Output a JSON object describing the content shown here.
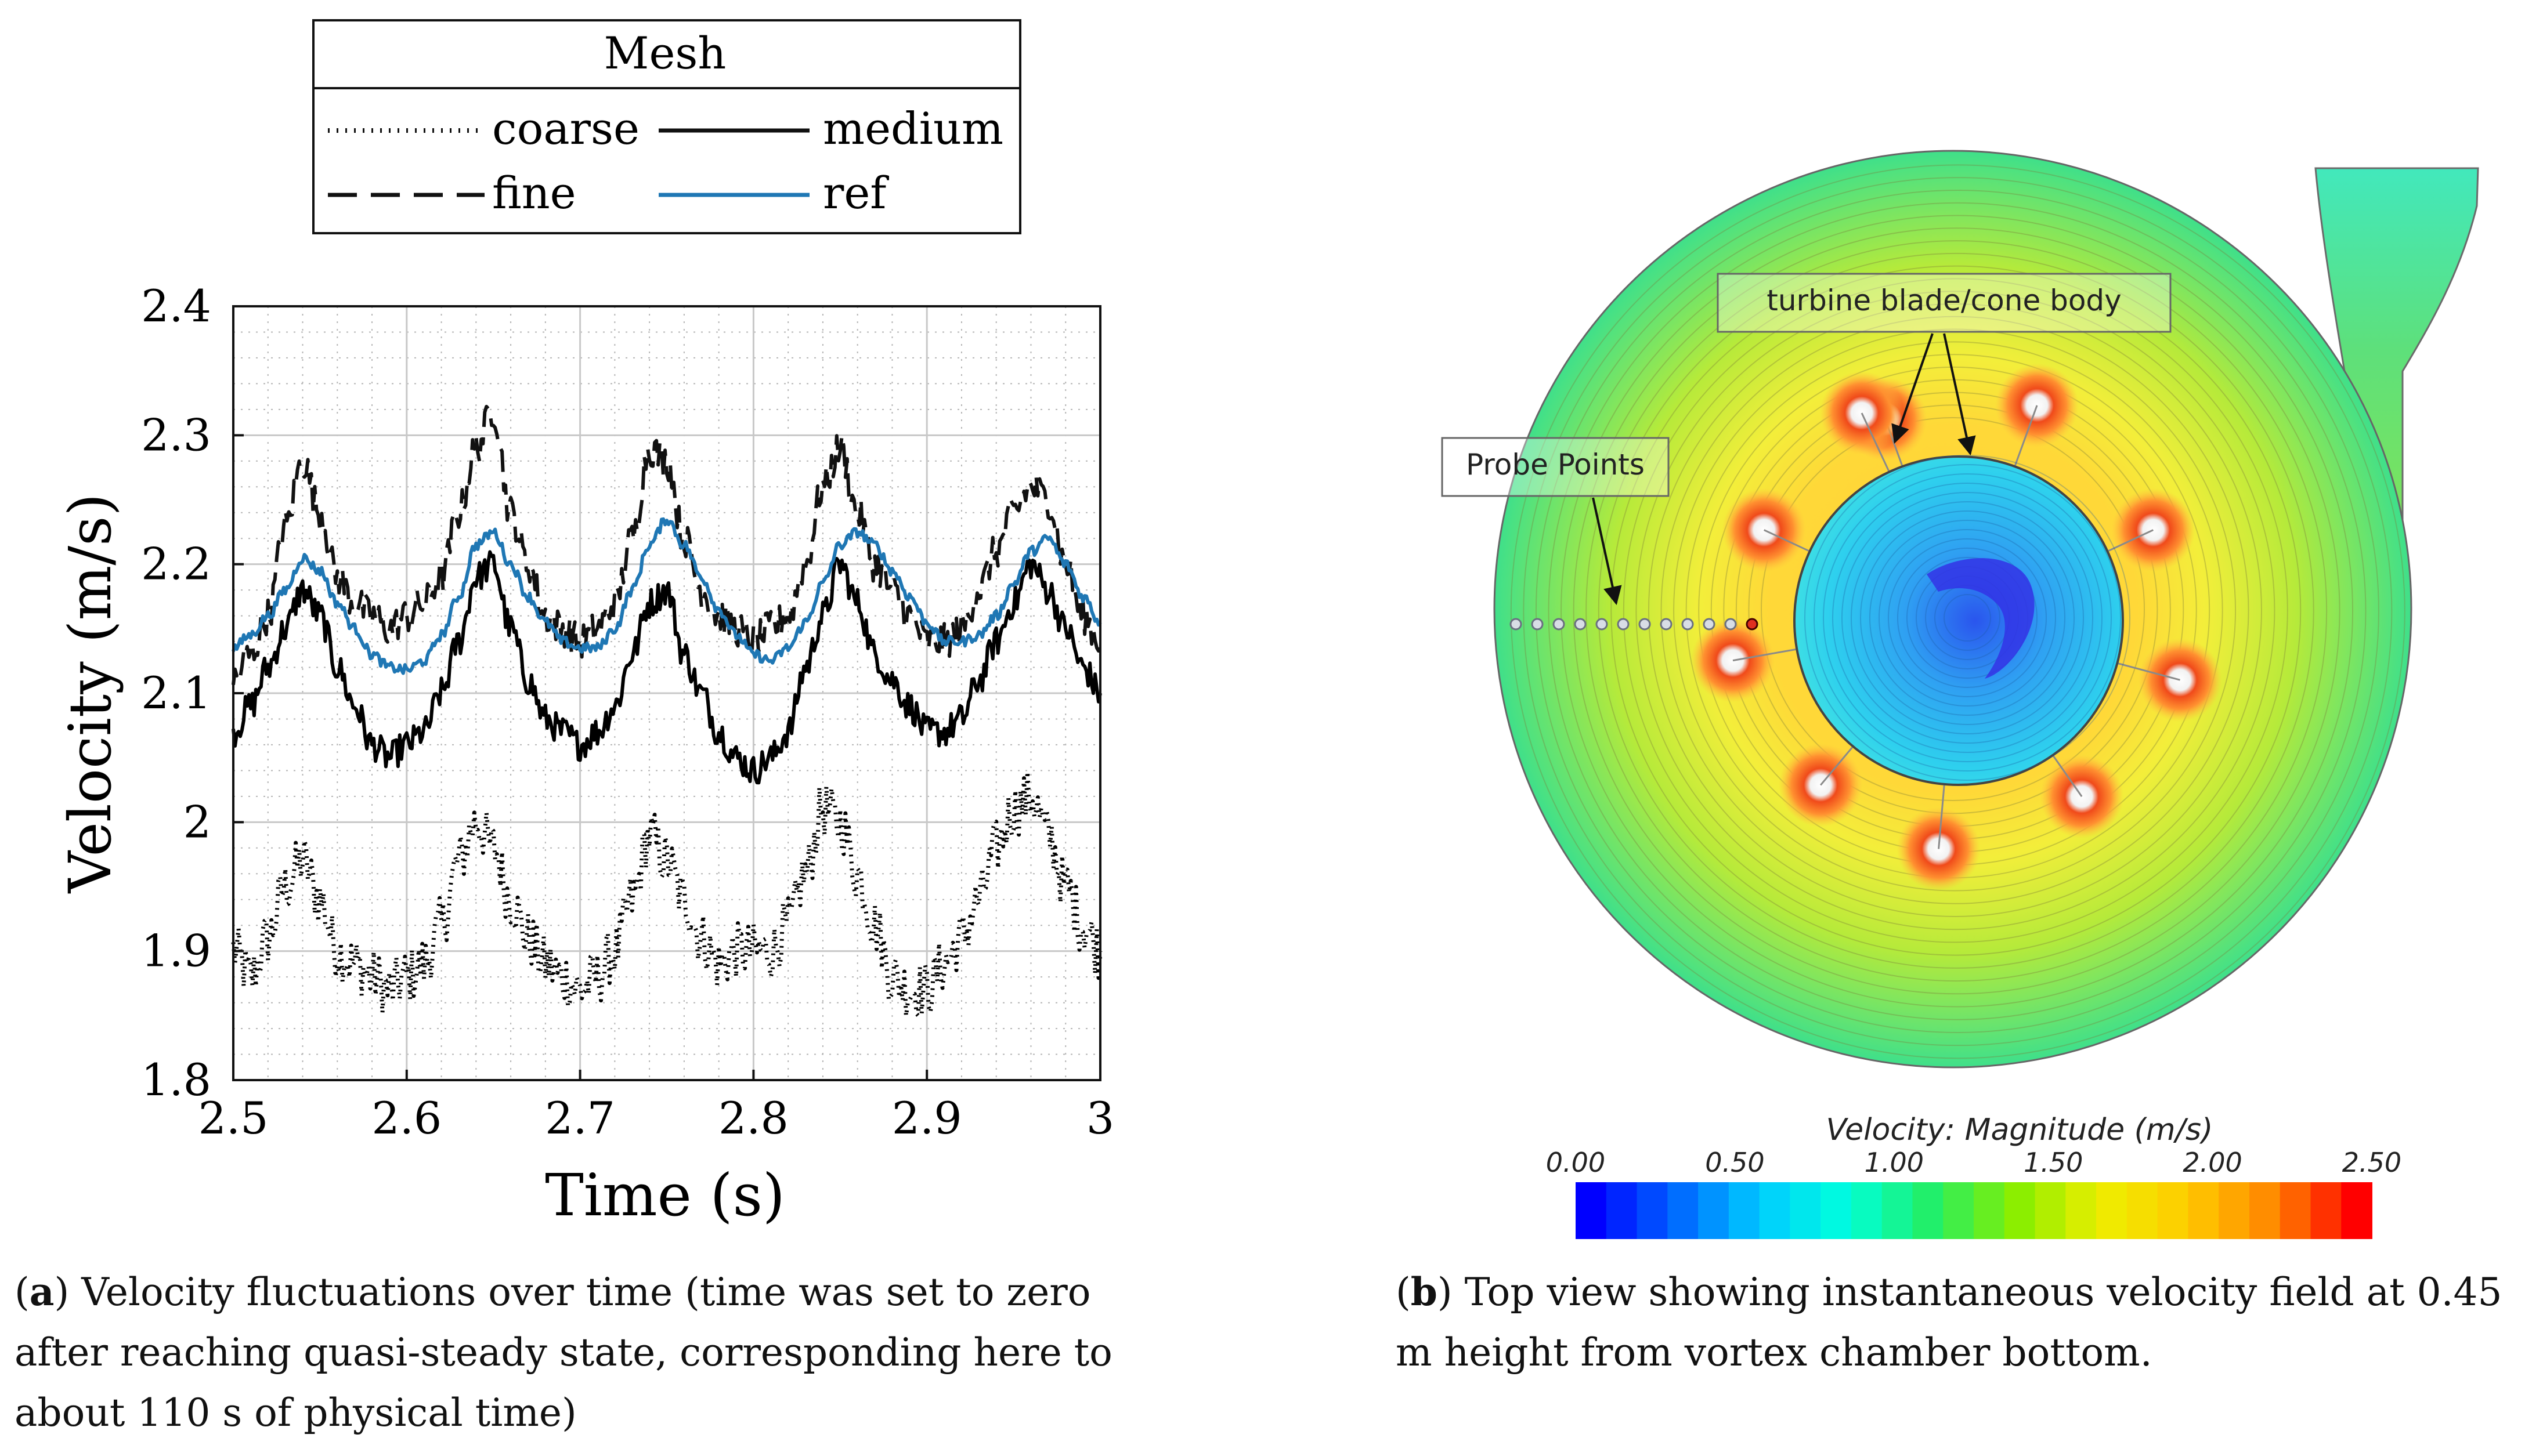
{
  "chart_data": [
    {
      "type": "line",
      "panel_label": "a",
      "xlabel": "Time (s)",
      "ylabel": "Velocity (m/s)",
      "xlim": [
        2.5,
        3.0
      ],
      "ylim": [
        1.8,
        2.4
      ],
      "xticks": [
        "2.5",
        "2.6",
        "2.7",
        "2.8",
        "2.9",
        "3"
      ],
      "yticks": [
        "1.8",
        "1.9",
        "2",
        "2.1",
        "2.2",
        "2.3",
        "2.4"
      ],
      "grid": true,
      "legend": {
        "title": "Mesh",
        "position": "top, above plot",
        "entries": [
          {
            "label": "coarse",
            "style": "dotted"
          },
          {
            "label": "medium",
            "style": "solid"
          },
          {
            "label": "fine",
            "style": "dashed"
          },
          {
            "label": "ref",
            "style": "solid-blue"
          }
        ]
      },
      "series": [
        {
          "name": "ref",
          "color": "#1f77b4",
          "x": [
            2.5,
            2.51,
            2.52,
            2.53,
            2.54,
            2.55,
            2.56,
            2.57,
            2.58,
            2.59,
            2.6,
            2.61,
            2.62,
            2.63,
            2.64,
            2.65,
            2.66,
            2.67,
            2.68,
            2.69,
            2.7,
            2.71,
            2.72,
            2.73,
            2.74,
            2.75,
            2.76,
            2.77,
            2.78,
            2.79,
            2.8,
            2.81,
            2.82,
            2.83,
            2.84,
            2.85,
            2.86,
            2.87,
            2.88,
            2.89,
            2.9,
            2.91,
            2.92,
            2.93,
            2.94,
            2.95,
            2.96,
            2.97,
            2.98,
            2.99,
            3.0
          ],
          "values": [
            2.135,
            2.145,
            2.16,
            2.18,
            2.205,
            2.195,
            2.17,
            2.15,
            2.13,
            2.12,
            2.118,
            2.125,
            2.145,
            2.175,
            2.215,
            2.225,
            2.2,
            2.175,
            2.155,
            2.14,
            2.135,
            2.135,
            2.15,
            2.18,
            2.215,
            2.235,
            2.215,
            2.19,
            2.165,
            2.145,
            2.13,
            2.125,
            2.135,
            2.155,
            2.185,
            2.215,
            2.225,
            2.215,
            2.195,
            2.175,
            2.155,
            2.14,
            2.14,
            2.145,
            2.16,
            2.185,
            2.21,
            2.22,
            2.2,
            2.175,
            2.155
          ]
        },
        {
          "name": "fine",
          "color": "#111111",
          "x": [
            2.5,
            2.51,
            2.52,
            2.53,
            2.54,
            2.55,
            2.56,
            2.57,
            2.58,
            2.59,
            2.6,
            2.61,
            2.62,
            2.63,
            2.64,
            2.65,
            2.66,
            2.67,
            2.68,
            2.69,
            2.7,
            2.71,
            2.72,
            2.73,
            2.74,
            2.75,
            2.76,
            2.77,
            2.78,
            2.79,
            2.8,
            2.81,
            2.82,
            2.83,
            2.84,
            2.85,
            2.86,
            2.87,
            2.88,
            2.89,
            2.9,
            2.91,
            2.92,
            2.93,
            2.94,
            2.95,
            2.96,
            2.97,
            2.98,
            2.99,
            3.0
          ],
          "values": [
            2.11,
            2.13,
            2.16,
            2.23,
            2.28,
            2.24,
            2.19,
            2.17,
            2.16,
            2.15,
            2.16,
            2.17,
            2.19,
            2.24,
            2.29,
            2.32,
            2.24,
            2.2,
            2.16,
            2.15,
            2.14,
            2.15,
            2.17,
            2.22,
            2.29,
            2.28,
            2.22,
            2.18,
            2.16,
            2.15,
            2.14,
            2.15,
            2.16,
            2.2,
            2.26,
            2.29,
            2.24,
            2.2,
            2.18,
            2.16,
            2.14,
            2.14,
            2.15,
            2.18,
            2.21,
            2.24,
            2.26,
            2.25,
            2.2,
            2.16,
            2.14
          ]
        },
        {
          "name": "medium",
          "color": "#000000",
          "x": [
            2.5,
            2.51,
            2.52,
            2.53,
            2.54,
            2.55,
            2.56,
            2.57,
            2.58,
            2.59,
            2.6,
            2.61,
            2.62,
            2.63,
            2.64,
            2.65,
            2.66,
            2.67,
            2.68,
            2.69,
            2.7,
            2.71,
            2.72,
            2.73,
            2.74,
            2.75,
            2.76,
            2.77,
            2.78,
            2.79,
            2.8,
            2.81,
            2.82,
            2.83,
            2.84,
            2.85,
            2.86,
            2.87,
            2.88,
            2.89,
            2.9,
            2.91,
            2.92,
            2.93,
            2.94,
            2.95,
            2.96,
            2.97,
            2.98,
            2.99,
            3.0
          ],
          "values": [
            2.07,
            2.09,
            2.12,
            2.15,
            2.18,
            2.16,
            2.12,
            2.09,
            2.06,
            2.05,
            2.06,
            2.07,
            2.1,
            2.14,
            2.19,
            2.2,
            2.15,
            2.11,
            2.08,
            2.07,
            2.06,
            2.07,
            2.09,
            2.13,
            2.17,
            2.18,
            2.13,
            2.1,
            2.07,
            2.05,
            2.04,
            2.05,
            2.07,
            2.12,
            2.16,
            2.2,
            2.17,
            2.13,
            2.11,
            2.09,
            2.07,
            2.07,
            2.08,
            2.11,
            2.14,
            2.17,
            2.2,
            2.18,
            2.15,
            2.12,
            2.1
          ]
        },
        {
          "name": "coarse",
          "color": "#000000",
          "x": [
            2.5,
            2.51,
            2.52,
            2.53,
            2.54,
            2.55,
            2.56,
            2.57,
            2.58,
            2.59,
            2.6,
            2.61,
            2.62,
            2.63,
            2.64,
            2.65,
            2.66,
            2.67,
            2.68,
            2.69,
            2.7,
            2.71,
            2.72,
            2.73,
            2.74,
            2.75,
            2.76,
            2.77,
            2.78,
            2.79,
            2.8,
            2.81,
            2.82,
            2.83,
            2.84,
            2.85,
            2.86,
            2.87,
            2.88,
            2.89,
            2.9,
            2.91,
            2.92,
            2.93,
            2.94,
            2.95,
            2.96,
            2.97,
            2.98,
            2.99,
            3.0
          ],
          "values": [
            1.9,
            1.88,
            1.91,
            1.95,
            1.97,
            1.94,
            1.9,
            1.89,
            1.88,
            1.87,
            1.88,
            1.89,
            1.92,
            1.97,
            2.0,
            1.98,
            1.94,
            1.91,
            1.89,
            1.88,
            1.87,
            1.88,
            1.9,
            1.94,
            1.99,
            1.97,
            1.94,
            1.91,
            1.89,
            1.9,
            1.9,
            1.9,
            1.92,
            1.96,
            2.01,
            2.0,
            1.96,
            1.92,
            1.88,
            1.87,
            1.87,
            1.89,
            1.91,
            1.94,
            1.98,
            2.01,
            2.02,
            1.99,
            1.95,
            1.92,
            1.9
          ]
        }
      ]
    },
    {
      "type": "heatmap",
      "panel_label": "b",
      "title": "Velocity: Magnitude (m/s)",
      "colorbar": {
        "range": [
          0.0,
          2.5
        ],
        "ticks": [
          "0.00",
          "0.50",
          "1.00",
          "1.50",
          "2.00",
          "2.50"
        ],
        "colors": [
          "#0000ff",
          "#0066ff",
          "#00ccff",
          "#00ffdd",
          "#22ee66",
          "#88ee00",
          "#eeee00",
          "#ffcc00",
          "#ff8800",
          "#ff0000"
        ]
      },
      "annotations": [
        "turbine blade/cone body",
        "Probe Points"
      ]
    }
  ],
  "captions": {
    "a": {
      "letter": "a",
      "text": " Velocity fluctuations over time (time was set to zero after reaching quasi-steady state, corresponding here to about 110 s of physical time)"
    },
    "b": {
      "letter": "b",
      "text": " Top view showing instantaneous velocity field at 0.45 m height from vortex chamber bottom."
    }
  }
}
